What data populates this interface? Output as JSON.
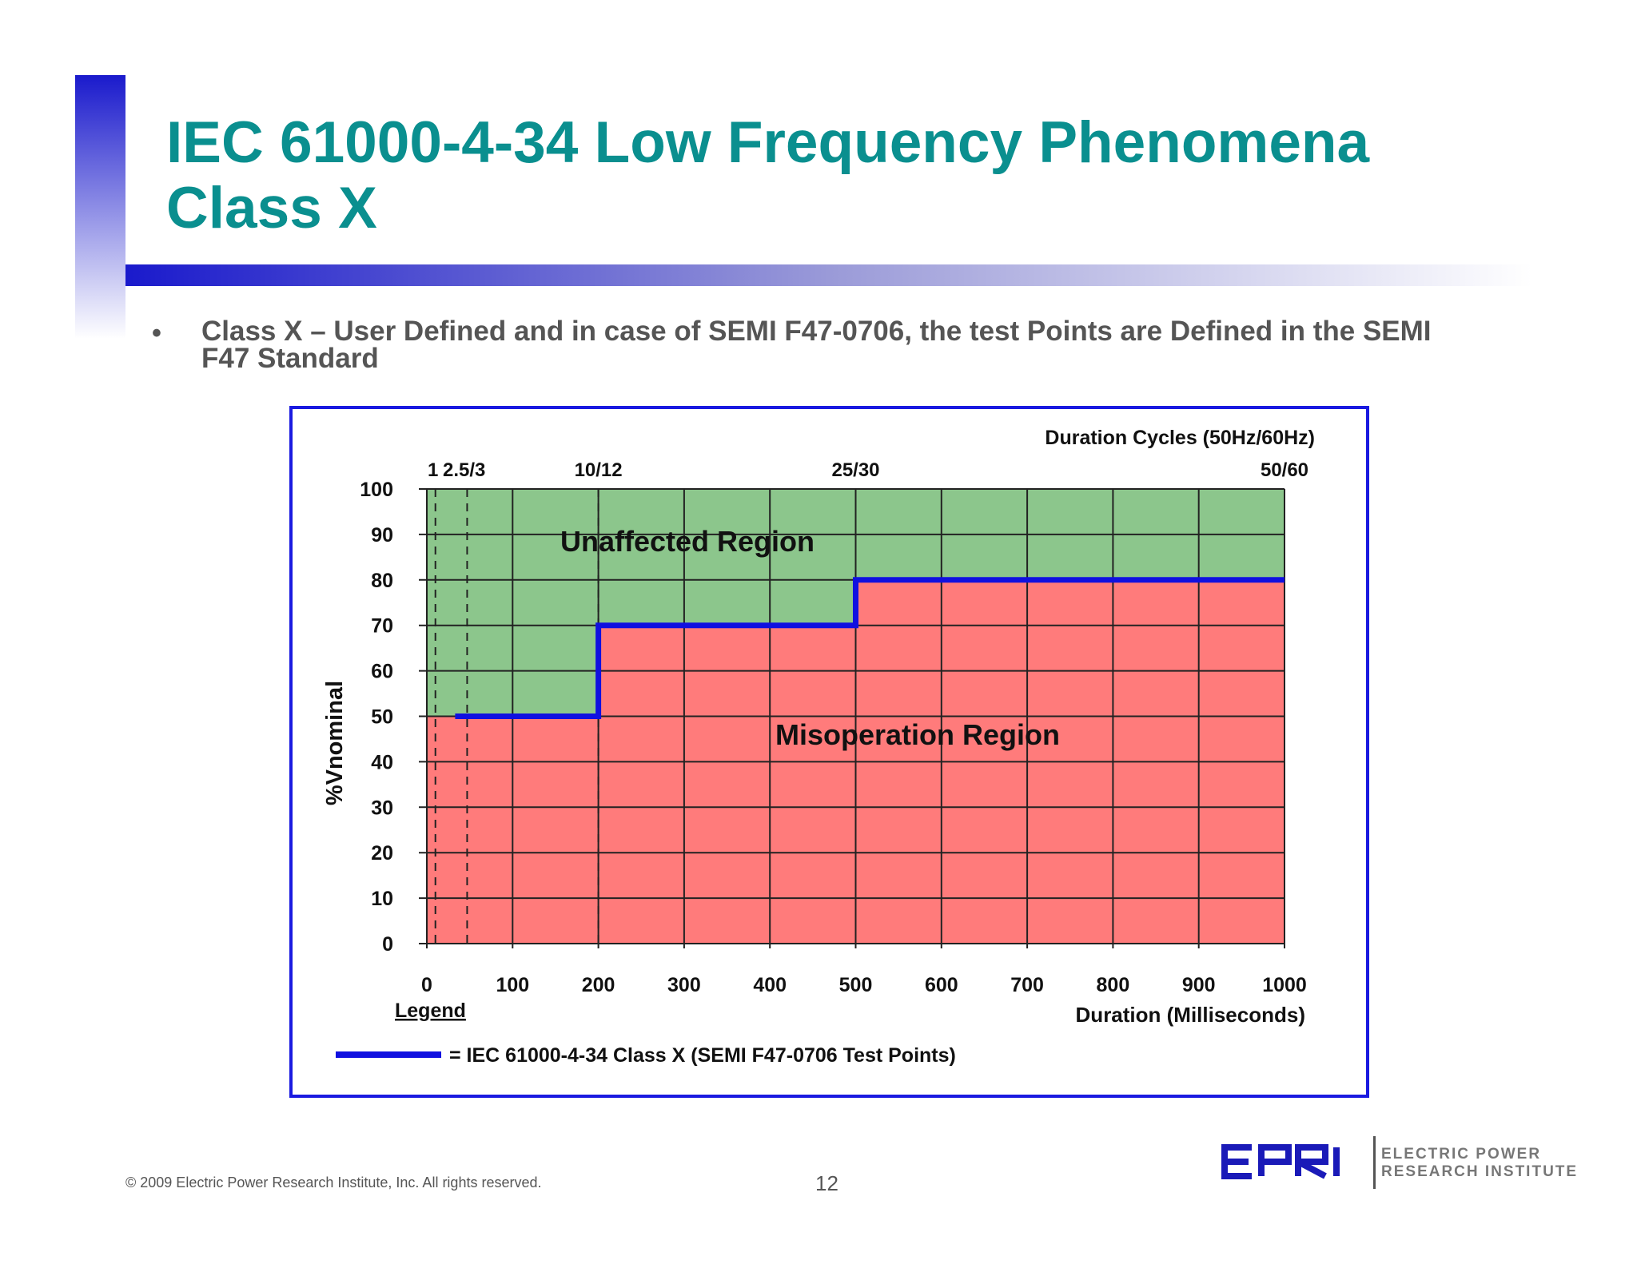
{
  "slide": {
    "title_line1": "IEC 61000-4-34 Low Frequency Phenomena",
    "title_line2": "Class X",
    "bullet_marker": "•",
    "bullet": "Class X – User Defined and in case of SEMI F47-0706, the test Points are Defined in the SEMI F47 Standard",
    "footer": "© 2009 Electric Power Research Institute, Inc. All rights reserved.",
    "page_number": "12",
    "logo": {
      "mark": "EPRI",
      "line1": "ELECTRIC POWER",
      "line2": "RESEARCH INSTITUTE"
    },
    "colors": {
      "title": "#0a8f8f",
      "accent": "#1a1acc"
    }
  },
  "chart_data": {
    "type": "line",
    "xlabel": "Duration (Milliseconds)",
    "ylabel": "%Vnominal",
    "top_axis_label": "Duration Cycles (50Hz/60Hz)",
    "xlim": [
      0,
      1000
    ],
    "ylim": [
      0,
      100
    ],
    "x_ticks": [
      0,
      100,
      200,
      300,
      400,
      500,
      600,
      700,
      800,
      900,
      1000
    ],
    "y_ticks": [
      0,
      10,
      20,
      30,
      40,
      50,
      60,
      70,
      80,
      90,
      100
    ],
    "cycle_markers": [
      {
        "label": "1",
        "x": 10
      },
      {
        "label": "2.5/3",
        "x": 47
      },
      {
        "label": "10/12",
        "x": 200
      },
      {
        "label": "25/30",
        "x": 500
      },
      {
        "label": "50/60",
        "x": 1000
      }
    ],
    "grid": true,
    "regions": [
      {
        "label": "Unaffected Region",
        "color": "#8cc68c"
      },
      {
        "label": "Misoperation Region",
        "color": "#ff7b7b"
      }
    ],
    "series": [
      {
        "name": "= IEC 61000-4-34 Class X (SEMI F47-0706 Test Points)",
        "color": "#1010e0",
        "x": [
          33,
          200,
          200,
          500,
          500,
          1000
        ],
        "y": [
          50,
          50,
          70,
          70,
          80,
          80
        ]
      }
    ],
    "legend_title": "Legend",
    "legend_placement": "bottom-left"
  }
}
